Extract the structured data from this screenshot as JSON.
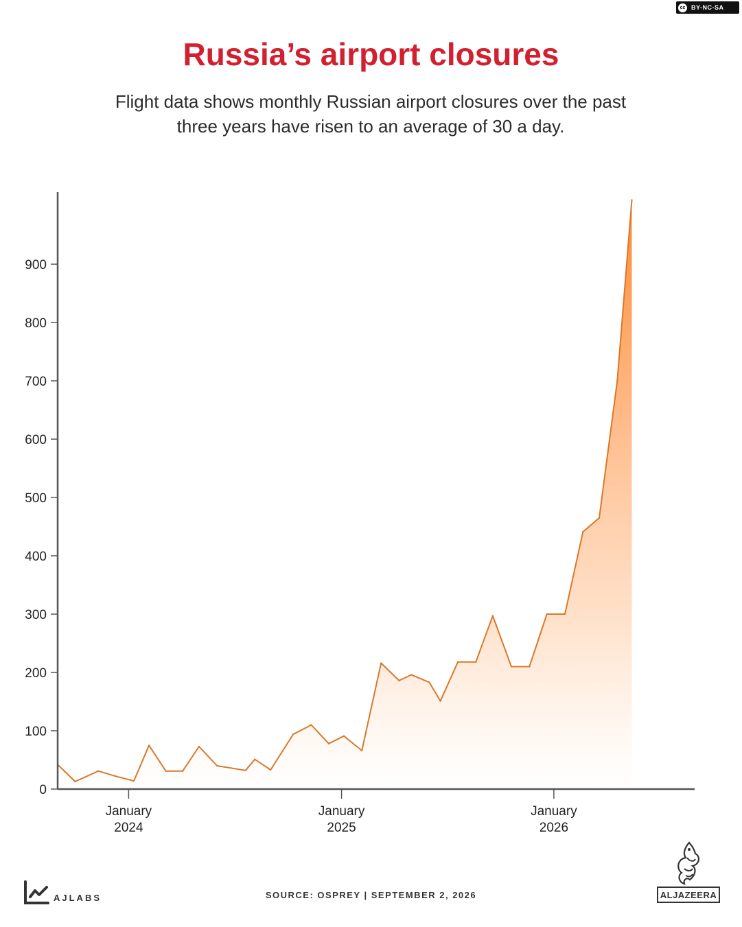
{
  "license": {
    "cc": "cc",
    "label": "BY-NC-SA"
  },
  "title": "Russia’s airport closures",
  "subtitle": "Flight data shows monthly Russian airport closures over the past three years have risen to an average of 30 a day.",
  "footer": {
    "brand": "AJLABS",
    "source": "SOURCE:  OSPREY  |  SEPTEMBER 2, 2026",
    "logo": "ALJAZEERA"
  },
  "colors": {
    "title": "#d1202f",
    "line": "#d9782a",
    "fill_top": "#ff8a33",
    "fill_bottom": "#ffffff",
    "axis": "#555555"
  },
  "chart_data": {
    "type": "area",
    "ylim": [
      0,
      1000
    ],
    "yticks": [
      0,
      100,
      200,
      300,
      400,
      500,
      600,
      700,
      800,
      900
    ],
    "xlim": [
      "2023-09-01",
      "2026-08-31"
    ],
    "xticks": [
      {
        "date": "2024-01-01",
        "label1": "January",
        "label2": "2024"
      },
      {
        "date": "2025-01-01",
        "label1": "January",
        "label2": "2025"
      },
      {
        "date": "2026-01-01",
        "label1": "January",
        "label2": "2026"
      }
    ],
    "grid": false,
    "points": [
      [
        "2023-09-01",
        42
      ],
      [
        "2023-10-01",
        13
      ],
      [
        "2023-11-10",
        31
      ],
      [
        "2023-12-10",
        22
      ],
      [
        "2024-01-10",
        14
      ],
      [
        "2024-02-05",
        75
      ],
      [
        "2024-03-05",
        31
      ],
      [
        "2024-04-03",
        31
      ],
      [
        "2024-05-01",
        73
      ],
      [
        "2024-06-01",
        40
      ],
      [
        "2024-07-20",
        32
      ],
      [
        "2024-08-05",
        51
      ],
      [
        "2024-09-01",
        33
      ],
      [
        "2024-10-10",
        94
      ],
      [
        "2024-11-10",
        110
      ],
      [
        "2024-12-10",
        78
      ],
      [
        "2025-01-05",
        91
      ],
      [
        "2025-02-05",
        66
      ],
      [
        "2025-03-10",
        216
      ],
      [
        "2025-04-10",
        186
      ],
      [
        "2025-05-01",
        196
      ],
      [
        "2025-06-01",
        183
      ],
      [
        "2025-06-20",
        151
      ],
      [
        "2025-07-20",
        218
      ],
      [
        "2025-08-20",
        218
      ],
      [
        "2025-09-18",
        297
      ],
      [
        "2025-10-20",
        210
      ],
      [
        "2025-11-20",
        210
      ],
      [
        "2025-12-20",
        300
      ],
      [
        "2026-01-20",
        300
      ],
      [
        "2026-02-20",
        441
      ],
      [
        "2026-03-20",
        465
      ],
      [
        "2026-04-20",
        700
      ],
      [
        "2026-05-15",
        1010
      ]
    ]
  }
}
